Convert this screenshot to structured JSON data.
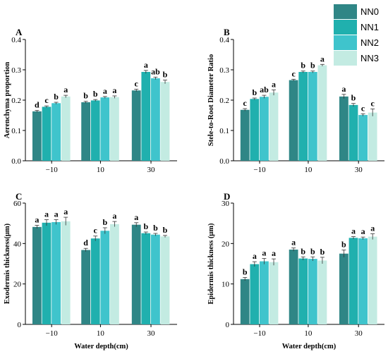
{
  "colors": {
    "NN0": "#2f8686",
    "NN1": "#20b0ae",
    "NN2": "#3fc4cc",
    "NN3": "#c3ebe2",
    "sig_red": "#c0392b"
  },
  "legend": [
    "NN0",
    "NN1",
    "NN2",
    "NN3"
  ],
  "chart_data": [
    {
      "id": "A",
      "type": "bar",
      "panel_label": "A",
      "title": "",
      "categories": [
        "−10",
        "10",
        "30"
      ],
      "ylabel": "Aerenchyma proportion",
      "xlabel": "",
      "ylim": [
        0,
        0.4
      ],
      "yticks": [
        "0.0",
        "0.1",
        "0.2",
        "0.3",
        "0.4"
      ],
      "series": [
        {
          "name": "NN0",
          "values": [
            0.163,
            0.193,
            0.232
          ],
          "err": [
            0.003,
            0.003,
            0.004
          ],
          "labels": [
            "d",
            "b",
            "c"
          ]
        },
        {
          "name": "NN1",
          "values": [
            0.178,
            0.199,
            0.293
          ],
          "err": [
            0.003,
            0.003,
            0.005
          ],
          "labels": [
            "c",
            "b",
            "a"
          ]
        },
        {
          "name": "NN2",
          "values": [
            0.19,
            0.209,
            0.272
          ],
          "err": [
            0.003,
            0.003,
            0.004
          ],
          "labels": [
            "b",
            "a",
            "ab"
          ]
        },
        {
          "name": "NN3",
          "values": [
            0.212,
            0.21,
            0.26
          ],
          "err": [
            0.004,
            0.004,
            0.006
          ],
          "labels": [
            "a",
            "a",
            "b"
          ]
        }
      ]
    },
    {
      "id": "B",
      "type": "bar",
      "panel_label": "B",
      "title": "",
      "categories": [
        "−10",
        "10",
        "30"
      ],
      "ylabel": "Stele-to-Root Diameter Ratio",
      "xlabel": "",
      "ylim": [
        0,
        0.4
      ],
      "yticks": [
        "0.0",
        "0.1",
        "0.2",
        "0.3",
        "0.4"
      ],
      "series": [
        {
          "name": "NN0",
          "values": [
            0.168,
            0.266,
            0.212
          ],
          "err": [
            0.004,
            0.003,
            0.007
          ],
          "labels": [
            "c",
            "c",
            "a"
          ]
        },
        {
          "name": "NN1",
          "values": [
            0.204,
            0.293,
            0.184
          ],
          "err": [
            0.003,
            0.003,
            0.005
          ],
          "labels": [
            "b",
            "b",
            "b"
          ]
        },
        {
          "name": "NN2",
          "values": [
            0.211,
            0.293,
            0.151
          ],
          "err": [
            0.005,
            0.003,
            0.004
          ],
          "labels": [
            "ab",
            "b",
            "c"
          ]
        },
        {
          "name": "NN3",
          "values": [
            0.225,
            0.315,
            0.159
          ],
          "err": [
            0.009,
            0.003,
            0.012
          ],
          "labels": [
            "a",
            "a",
            "c"
          ]
        }
      ]
    },
    {
      "id": "C",
      "type": "bar",
      "panel_label": "C",
      "title": "",
      "categories": [
        "−10",
        "10",
        "30"
      ],
      "ylabel": "Exodermis thickness(μm)",
      "xlabel": "Water depth(cm)",
      "ylim": [
        0,
        60
      ],
      "yticks": [
        "0",
        "20",
        "40",
        "60"
      ],
      "series": [
        {
          "name": "NN0",
          "values": [
            48.2,
            36.8,
            49.3
          ],
          "err": [
            0.8,
            0.8,
            1.0
          ],
          "labels": [
            "a",
            "d",
            "a"
          ],
          "label_colors": [
            "",
            "",
            ""
          ]
        },
        {
          "name": "NN1",
          "values": [
            50.3,
            42.5,
            45.1
          ],
          "err": [
            1.5,
            1.2,
            0.6
          ],
          "labels": [
            "a",
            "c",
            "b"
          ],
          "label_colors": [
            "",
            "sig_red",
            ""
          ]
        },
        {
          "name": "NN2",
          "values": [
            50.6,
            46.3,
            44.4
          ],
          "err": [
            1.2,
            1.5,
            0.6
          ],
          "labels": [
            "a",
            "b",
            "b"
          ],
          "label_colors": [
            "",
            "",
            ""
          ]
        },
        {
          "name": "NN3",
          "values": [
            51.0,
            49.6,
            43.5
          ],
          "err": [
            2.0,
            1.3,
            0.5
          ],
          "labels": [
            "a",
            "a",
            "b"
          ],
          "label_colors": [
            "",
            "",
            ""
          ]
        }
      ]
    },
    {
      "id": "D",
      "type": "bar",
      "panel_label": "D",
      "title": "",
      "categories": [
        "−10",
        "10",
        "30"
      ],
      "ylabel": "Epidermis thickness (μm)",
      "xlabel": "Water depth(cm)",
      "ylim": [
        0,
        30
      ],
      "yticks": [
        "0",
        "10",
        "20",
        "30"
      ],
      "series": [
        {
          "name": "NN0",
          "values": [
            11.2,
            18.5,
            17.5
          ],
          "err": [
            0.4,
            0.4,
            0.9
          ],
          "labels": [
            "b",
            "a",
            "b"
          ]
        },
        {
          "name": "NN1",
          "values": [
            14.9,
            16.3,
            21.4
          ],
          "err": [
            0.6,
            0.4,
            0.3
          ],
          "labels": [
            "a",
            "b",
            "a"
          ]
        },
        {
          "name": "NN2",
          "values": [
            15.6,
            16.2,
            21.3
          ],
          "err": [
            0.7,
            0.5,
            0.3
          ],
          "labels": [
            "a",
            "b",
            "a"
          ]
        },
        {
          "name": "NN3",
          "values": [
            15.4,
            15.8,
            21.7
          ],
          "err": [
            0.8,
            0.8,
            0.7
          ],
          "labels": [
            "a",
            "b",
            "a"
          ]
        }
      ]
    }
  ]
}
